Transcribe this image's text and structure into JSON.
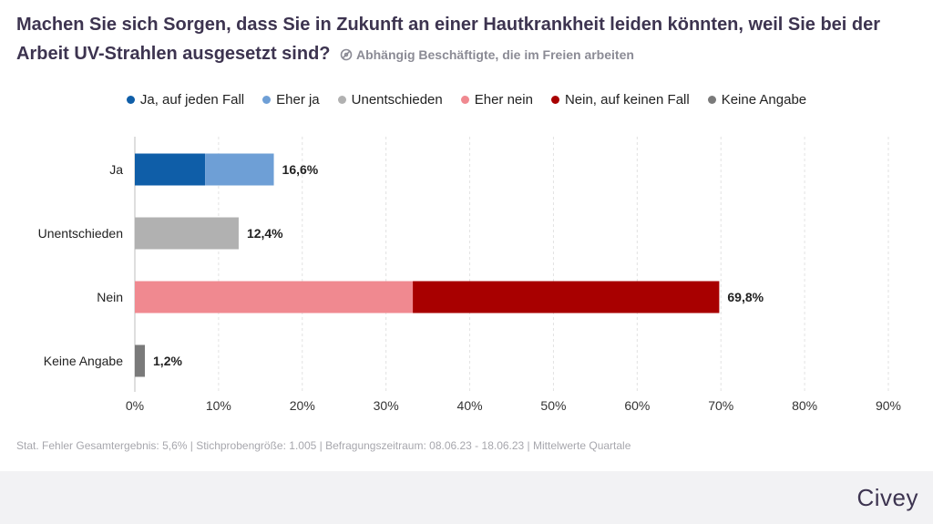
{
  "header": {
    "title": "Machen Sie sich Sorgen, dass Sie in Zukunft an einer Hautkrankheit leiden könnten, weil Sie bei der Arbeit UV-Strahlen ausgesetzt sind?",
    "subtitle": "Abhängig Beschäftigte, die im Freien arbeiten",
    "subtitle_icon": "filter-icon"
  },
  "footnote": "Stat. Fehler Gesamtergebnis: 5,6% | Stichprobengröße: 1.005 | Befragungszeitraum: 08.06.23 - 18.06.23 | Mittelwerte Quartale",
  "brand": "Civey",
  "chart_data": {
    "type": "bar",
    "orientation": "horizontal",
    "stacked": true,
    "categories": [
      "Ja",
      "Unentschieden",
      "Nein",
      "Keine Angabe"
    ],
    "series": [
      {
        "name": "Ja, auf jeden Fall",
        "color": "#0f5ea8",
        "values": [
          8.4,
          0,
          0,
          0
        ]
      },
      {
        "name": "Eher ja",
        "color": "#6e9fd6",
        "values": [
          8.2,
          0,
          0,
          0
        ]
      },
      {
        "name": "Unentschieden",
        "color": "#b1b1b1",
        "values": [
          0,
          12.4,
          0,
          0
        ]
      },
      {
        "name": "Eher nein",
        "color": "#f08990",
        "values": [
          0,
          0,
          33.2,
          0
        ]
      },
      {
        "name": "Nein, auf keinen Fall",
        "color": "#a80000",
        "values": [
          0,
          0,
          36.6,
          0
        ]
      },
      {
        "name": "Keine Angabe",
        "color": "#7a7a7a",
        "values": [
          0,
          0,
          0,
          1.2
        ]
      }
    ],
    "totals_labels": [
      "16,6%",
      "12,4%",
      "69,8%",
      "1,2%"
    ],
    "totals": [
      16.6,
      12.4,
      69.8,
      1.2
    ],
    "xlim": [
      0,
      90
    ],
    "xticks": [
      0,
      10,
      20,
      30,
      40,
      50,
      60,
      70,
      80,
      90
    ],
    "xtick_labels": [
      "0%",
      "10%",
      "20%",
      "30%",
      "40%",
      "50%",
      "60%",
      "70%",
      "80%",
      "90%"
    ],
    "grid": "vertical-dashed",
    "legend_position": "top-center"
  }
}
